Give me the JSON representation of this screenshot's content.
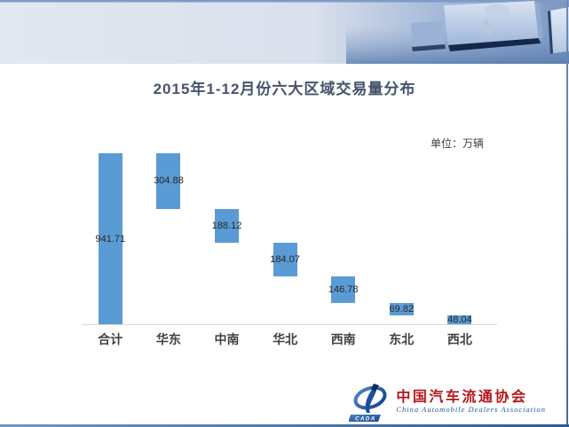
{
  "slide": {
    "title": "2015年1-12月份六大区域交易量分布",
    "unit_label": "单位：万辆"
  },
  "chart_data": {
    "type": "bar",
    "subtype": "waterfall",
    "title": "2015年1-12月份六大区域交易量分布",
    "unit": "万辆",
    "categories": [
      "合计",
      "华东",
      "中南",
      "华北",
      "西南",
      "东北",
      "西北"
    ],
    "values": [
      941.71,
      304.88,
      188.12,
      184.07,
      146.78,
      69.82,
      48.04
    ],
    "value_labels": [
      "941.71",
      "304.88",
      "188.12",
      "184.07",
      "146.78",
      "69.82",
      "48.04"
    ],
    "segments": [
      {
        "category": "合计",
        "from": 0,
        "to": 941.71
      },
      {
        "category": "华东",
        "from": 636.83,
        "to": 941.71
      },
      {
        "category": "中南",
        "from": 448.71,
        "to": 636.83
      },
      {
        "category": "华北",
        "from": 264.64,
        "to": 448.71
      },
      {
        "category": "西南",
        "from": 117.86,
        "to": 264.64
      },
      {
        "category": "东北",
        "from": 48.04,
        "to": 117.86
      },
      {
        "category": "西北",
        "from": 0,
        "to": 48.04
      }
    ],
    "ylim": [
      0,
      941.71
    ],
    "grid": false,
    "legend": false,
    "bar_color": "#5B9BD5",
    "value_label_color": "#262626",
    "category_label_color": "#404040",
    "axis_color": "#D9D9D9"
  },
  "footer": {
    "logo": {
      "acronym": "CADA",
      "name_cn": "中国汽车流通协会",
      "name_en": "China Automobile Dealers Association",
      "accent_red": "#b5161b",
      "accent_blue": "#2456a4"
    }
  },
  "colors": {
    "title_text": "#44546A",
    "banner_light": "#dde3ee",
    "banner_blue": "#7b97c3",
    "frame_border": "#416ba2",
    "background": "#ffffff"
  }
}
